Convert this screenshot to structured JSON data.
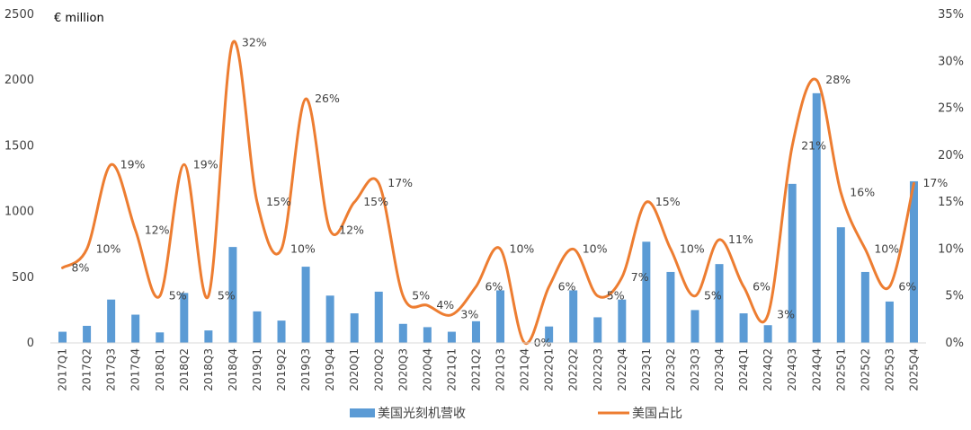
{
  "chart_data": {
    "type": "bar+line",
    "unit_label": "€ million",
    "categories": [
      "2017Q1",
      "2017Q2",
      "2017Q3",
      "2017Q4",
      "2018Q1",
      "2018Q2",
      "2018Q3",
      "2018Q4",
      "2019Q1",
      "2019Q2",
      "2019Q3",
      "2019Q4",
      "2020Q1",
      "2020Q2",
      "2020Q3",
      "2020Q4",
      "2021Q1",
      "2021Q2",
      "2021Q3",
      "2021Q4",
      "2022Q1",
      "2022Q2",
      "2022Q3",
      "2022Q4",
      "2023Q1",
      "2023Q2",
      "2023Q3",
      "2023Q4",
      "2024Q1",
      "2024Q2",
      "2024Q3",
      "2024Q4",
      "2025Q1",
      "2025Q2",
      "2025Q3",
      "2025Q4"
    ],
    "y_left": {
      "ylim": [
        0,
        2500
      ],
      "ticks": [
        "0",
        "500",
        "1000",
        "1500",
        "2000",
        "2500"
      ]
    },
    "y_right": {
      "ylim": [
        0,
        35
      ],
      "ticks": [
        "0%",
        "5%",
        "10%",
        "15%",
        "20%",
        "25%",
        "30%",
        "35%"
      ]
    },
    "series": [
      {
        "name": "美国光刻机营收",
        "type": "bar",
        "axis": "left",
        "color": "#5B9BD5",
        "values": [
          85,
          130,
          330,
          215,
          80,
          380,
          95,
          730,
          240,
          170,
          580,
          360,
          225,
          390,
          145,
          120,
          85,
          165,
          400,
          0,
          125,
          400,
          195,
          330,
          770,
          540,
          250,
          600,
          225,
          135,
          1210,
          1900,
          880,
          540,
          315,
          1230
        ]
      },
      {
        "name": "美国占比",
        "type": "line",
        "axis": "right",
        "color": "#ED7D31",
        "values": [
          8,
          10,
          19,
          12,
          5,
          19,
          5,
          32,
          15,
          10,
          26,
          12,
          15,
          17,
          5,
          4,
          3,
          6,
          10,
          0,
          6,
          10,
          5,
          7,
          15,
          10,
          5,
          11,
          6,
          3,
          21,
          28,
          16,
          10,
          6,
          17
        ],
        "labels": [
          "8%",
          "10%",
          "19%",
          "12%",
          "5%",
          "19%",
          "5%",
          "32%",
          "15%",
          "10%",
          "26%",
          "12%",
          "15%",
          "17%",
          "5%",
          "4%",
          "3%",
          "6%",
          "10%",
          "0%",
          "6%",
          "10%",
          "5%",
          "7%",
          "15%",
          "10%",
          "5%",
          "11%",
          "6%",
          "3%",
          "21%",
          "28%",
          "16%",
          "10%",
          "6%",
          "17%"
        ]
      }
    ],
    "legend_position": "bottom",
    "grid": false
  }
}
